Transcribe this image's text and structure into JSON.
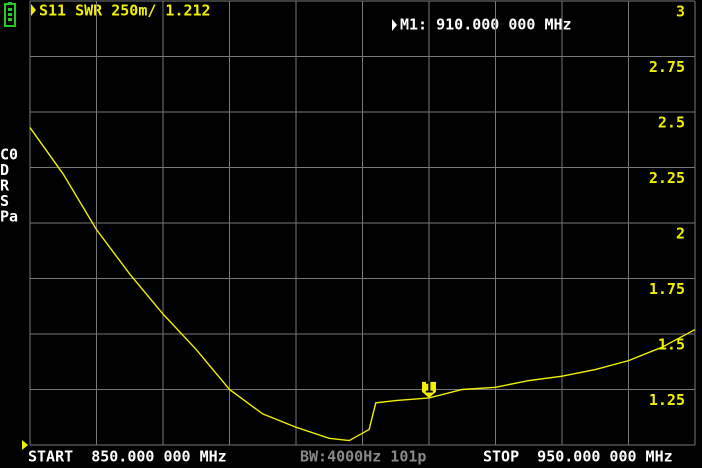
{
  "chart_data": {
    "type": "line",
    "title": "S11 SWR 250m/ 1.212",
    "marker_readout": "M1: 910.000 000 MHz",
    "side_labels": [
      "C0",
      "D",
      "R",
      "S",
      "Pa"
    ],
    "footer": {
      "start": "START  850.000 000 MHz",
      "bw": "BW:4000Hz 101p",
      "stop": "STOP  950.000 000 MHz"
    },
    "x": [
      850,
      855,
      860,
      865,
      870,
      875,
      880,
      885,
      890,
      895,
      898,
      901,
      902,
      905,
      910,
      915,
      920,
      925,
      930,
      935,
      940,
      945,
      950
    ],
    "series": [
      {
        "name": "S11 SWR",
        "color": "#f0f000",
        "values": [
          2.43,
          2.22,
          1.97,
          1.77,
          1.59,
          1.43,
          1.25,
          1.14,
          1.08,
          1.03,
          1.02,
          1.07,
          1.19,
          1.2,
          1.212,
          1.25,
          1.26,
          1.29,
          1.31,
          1.34,
          1.38,
          1.44,
          1.52
        ]
      }
    ],
    "marker": {
      "label": "1",
      "x": 910,
      "y": 1.212
    },
    "xlim": [
      850,
      950
    ],
    "ylim": [
      1,
      3
    ],
    "yticks": [
      1.25,
      1.5,
      1.75,
      2,
      2.25,
      2.5,
      2.75,
      3
    ],
    "grid": true
  }
}
